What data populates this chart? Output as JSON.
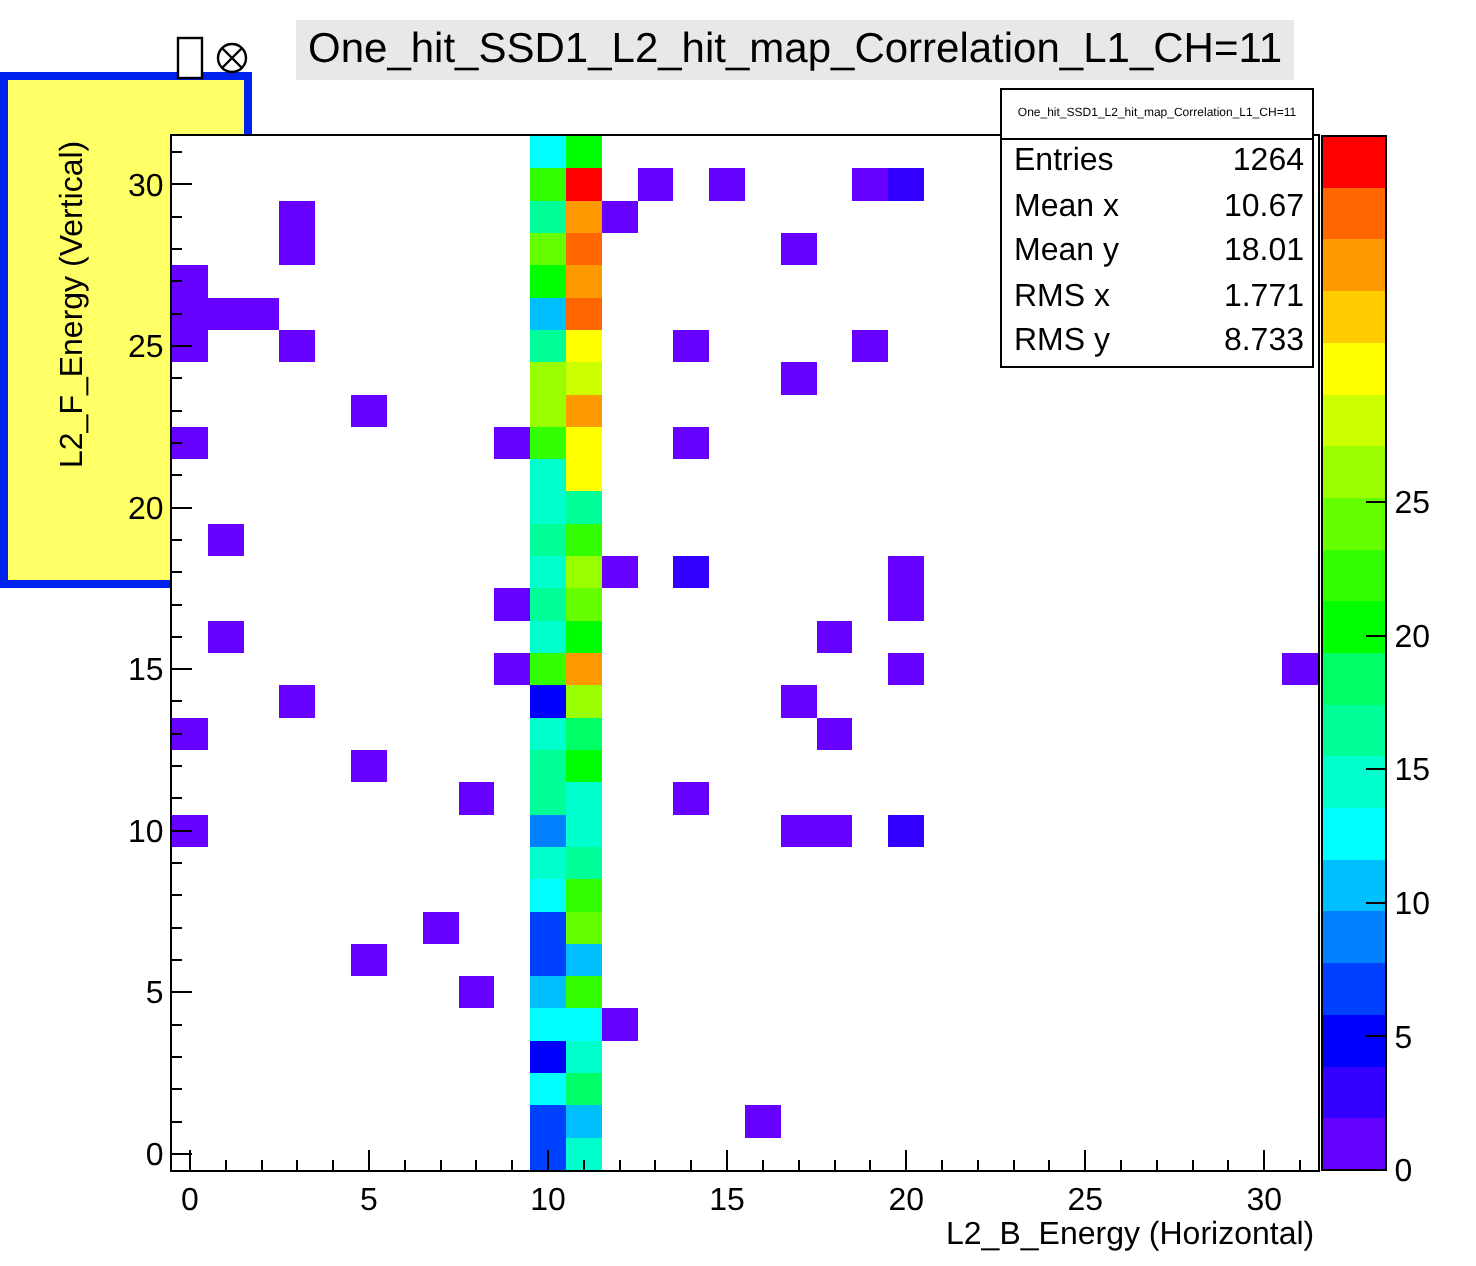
{
  "chart_data": {
    "type": "heatmap",
    "title": "One_hit_SSD1_L2_hit_map_Correlation_L1_CH=11",
    "xlabel": "L2_B_Energy (Horizontal)",
    "ylabel": "L2_F_Energy (Vertical)",
    "annotations": [
      "One_hit_SSD1_L2_hit_map_Correlation_L1_CH=11",
      "Entries",
      "1264",
      "Mean x",
      "10.67",
      "Mean y",
      "18.01",
      "RMS x",
      "1.771",
      "RMS y",
      "8.733"
    ],
    "x": [
      0,
      1,
      2,
      3,
      4,
      5,
      6,
      7,
      8,
      9,
      10,
      11,
      12,
      13,
      14,
      15,
      16,
      17,
      18,
      19,
      20,
      21,
      22,
      23,
      24,
      25,
      26,
      27,
      28,
      29,
      30,
      31
    ],
    "y_categories": [
      null,
      "30",
      null,
      null,
      null,
      null,
      "25",
      null,
      null,
      null,
      null,
      "20",
      null,
      null,
      null,
      null,
      "15",
      null,
      null,
      null,
      null,
      "10",
      null,
      null,
      null,
      null,
      "5",
      null,
      null,
      null,
      null,
      "0"
    ],
    "xlim": [
      -0.5,
      31.5
    ],
    "xticks": [
      0,
      5,
      10,
      15,
      20,
      25,
      30
    ],
    "clim": [
      0,
      38.7
    ],
    "cticks": [
      0,
      5,
      10,
      15,
      20,
      25
    ],
    "cells": [
      [
        null,
        null,
        null,
        null,
        null,
        null,
        null,
        null,
        null,
        null,
        13,
        20,
        null,
        null,
        null,
        null,
        null,
        null,
        null,
        null,
        null,
        null,
        null,
        null,
        null,
        null,
        null,
        null,
        null,
        null,
        null,
        null
      ],
      [
        null,
        null,
        null,
        null,
        null,
        null,
        null,
        null,
        null,
        null,
        22,
        38,
        null,
        1,
        null,
        1,
        null,
        null,
        null,
        1,
        3,
        null,
        null,
        null,
        null,
        null,
        null,
        null,
        null,
        null,
        null,
        null
      ],
      [
        null,
        null,
        null,
        1,
        null,
        null,
        null,
        null,
        null,
        null,
        17,
        34,
        1,
        null,
        null,
        null,
        null,
        null,
        null,
        null,
        null,
        null,
        null,
        null,
        null,
        null,
        null,
        null,
        null,
        null,
        null,
        null
      ],
      [
        null,
        null,
        null,
        1,
        null,
        null,
        null,
        null,
        null,
        null,
        24,
        36,
        null,
        null,
        null,
        null,
        null,
        1,
        null,
        null,
        null,
        null,
        null,
        null,
        null,
        null,
        null,
        null,
        null,
        null,
        null,
        null
      ],
      [
        1,
        null,
        null,
        null,
        null,
        null,
        null,
        null,
        null,
        null,
        20,
        34,
        null,
        null,
        null,
        null,
        null,
        null,
        null,
        null,
        null,
        null,
        null,
        null,
        null,
        null,
        null,
        null,
        null,
        null,
        null,
        null
      ],
      [
        1,
        1,
        1,
        null,
        null,
        null,
        null,
        null,
        null,
        null,
        11,
        36,
        null,
        null,
        null,
        null,
        null,
        null,
        null,
        null,
        null,
        null,
        null,
        null,
        null,
        null,
        null,
        null,
        null,
        null,
        null,
        null
      ],
      [
        1,
        null,
        null,
        1,
        null,
        null,
        null,
        null,
        null,
        null,
        17,
        30,
        null,
        null,
        1,
        null,
        null,
        null,
        null,
        1,
        null,
        null,
        null,
        null,
        null,
        null,
        null,
        null,
        null,
        null,
        null,
        null
      ],
      [
        null,
        null,
        null,
        null,
        null,
        null,
        null,
        null,
        null,
        null,
        26,
        28,
        null,
        null,
        null,
        null,
        null,
        1,
        null,
        null,
        null,
        null,
        null,
        null,
        null,
        null,
        null,
        null,
        null,
        null,
        null,
        null
      ],
      [
        null,
        null,
        null,
        null,
        null,
        1,
        null,
        null,
        null,
        null,
        26,
        34,
        null,
        null,
        null,
        null,
        null,
        null,
        null,
        null,
        null,
        null,
        null,
        null,
        null,
        null,
        null,
        null,
        null,
        null,
        null,
        null
      ],
      [
        1,
        null,
        null,
        null,
        null,
        null,
        null,
        null,
        null,
        1,
        22,
        30,
        null,
        null,
        1,
        null,
        null,
        null,
        null,
        null,
        null,
        null,
        null,
        null,
        null,
        null,
        null,
        null,
        null,
        null,
        null,
        null
      ],
      [
        null,
        null,
        null,
        null,
        null,
        null,
        null,
        null,
        null,
        null,
        15,
        30,
        null,
        null,
        null,
        null,
        null,
        null,
        null,
        null,
        null,
        null,
        null,
        null,
        null,
        null,
        null,
        null,
        null,
        null,
        null,
        null
      ],
      [
        null,
        null,
        null,
        null,
        null,
        null,
        null,
        null,
        null,
        null,
        15,
        17,
        null,
        null,
        null,
        null,
        null,
        null,
        null,
        null,
        null,
        null,
        null,
        null,
        null,
        null,
        null,
        null,
        null,
        null,
        null,
        null
      ],
      [
        null,
        1,
        null,
        null,
        null,
        null,
        null,
        null,
        null,
        null,
        17,
        22,
        null,
        null,
        null,
        null,
        null,
        null,
        null,
        null,
        null,
        null,
        null,
        null,
        null,
        null,
        null,
        null,
        null,
        null,
        null,
        null
      ],
      [
        null,
        null,
        null,
        null,
        null,
        null,
        null,
        null,
        null,
        null,
        15,
        26,
        1,
        null,
        3,
        null,
        null,
        null,
        null,
        null,
        1,
        null,
        null,
        null,
        null,
        null,
        null,
        null,
        null,
        null,
        null,
        null
      ],
      [
        null,
        null,
        null,
        null,
        null,
        null,
        null,
        null,
        null,
        1,
        17,
        24,
        null,
        null,
        null,
        null,
        null,
        null,
        null,
        null,
        1,
        null,
        null,
        null,
        null,
        null,
        null,
        null,
        null,
        null,
        null,
        null
      ],
      [
        null,
        1,
        null,
        null,
        null,
        null,
        null,
        null,
        null,
        null,
        15,
        20,
        null,
        null,
        null,
        null,
        null,
        null,
        1,
        null,
        null,
        null,
        null,
        null,
        null,
        null,
        null,
        null,
        null,
        null,
        null,
        null
      ],
      [
        null,
        null,
        null,
        null,
        null,
        null,
        null,
        null,
        null,
        1,
        22,
        34,
        null,
        null,
        null,
        null,
        null,
        null,
        null,
        null,
        1,
        null,
        null,
        null,
        null,
        null,
        null,
        null,
        null,
        null,
        null,
        1
      ],
      [
        null,
        null,
        null,
        1,
        null,
        null,
        null,
        null,
        null,
        null,
        5,
        26,
        null,
        null,
        null,
        null,
        null,
        1,
        null,
        null,
        null,
        null,
        null,
        null,
        null,
        null,
        null,
        null,
        null,
        null,
        null,
        null
      ],
      [
        1,
        null,
        null,
        null,
        null,
        null,
        null,
        null,
        null,
        null,
        15,
        18,
        null,
        null,
        null,
        null,
        null,
        null,
        1,
        null,
        null,
        null,
        null,
        null,
        null,
        null,
        null,
        null,
        null,
        null,
        null,
        null
      ],
      [
        null,
        null,
        null,
        null,
        null,
        1,
        null,
        null,
        null,
        null,
        17,
        20,
        null,
        null,
        null,
        null,
        null,
        null,
        null,
        null,
        null,
        null,
        null,
        null,
        null,
        null,
        null,
        null,
        null,
        null,
        null,
        null
      ],
      [
        null,
        null,
        null,
        null,
        null,
        null,
        null,
        null,
        1,
        null,
        17,
        15,
        null,
        null,
        1,
        null,
        null,
        null,
        null,
        null,
        null,
        null,
        null,
        null,
        null,
        null,
        null,
        null,
        null,
        null,
        null,
        null
      ],
      [
        1,
        null,
        null,
        null,
        null,
        null,
        null,
        null,
        null,
        null,
        9,
        15,
        null,
        null,
        null,
        null,
        null,
        1,
        1,
        null,
        3,
        null,
        null,
        null,
        null,
        null,
        null,
        null,
        null,
        null,
        null,
        null
      ],
      [
        null,
        null,
        null,
        null,
        null,
        null,
        null,
        null,
        null,
        null,
        15,
        17,
        null,
        null,
        null,
        null,
        null,
        null,
        null,
        null,
        null,
        null,
        null,
        null,
        null,
        null,
        null,
        null,
        null,
        null,
        null,
        null
      ],
      [
        null,
        null,
        null,
        null,
        null,
        null,
        null,
        null,
        null,
        null,
        13,
        22,
        null,
        null,
        null,
        null,
        null,
        null,
        null,
        null,
        null,
        null,
        null,
        null,
        null,
        null,
        null,
        null,
        null,
        null,
        null,
        null
      ],
      [
        null,
        null,
        null,
        null,
        null,
        null,
        null,
        1,
        null,
        null,
        7,
        24,
        null,
        null,
        null,
        null,
        null,
        null,
        null,
        null,
        null,
        null,
        null,
        null,
        null,
        null,
        null,
        null,
        null,
        null,
        null,
        null
      ],
      [
        null,
        null,
        null,
        null,
        null,
        1,
        null,
        null,
        null,
        null,
        7,
        11,
        null,
        null,
        null,
        null,
        null,
        null,
        null,
        null,
        null,
        null,
        null,
        null,
        null,
        null,
        null,
        null,
        null,
        null,
        null,
        null
      ],
      [
        null,
        null,
        null,
        null,
        null,
        null,
        null,
        null,
        1,
        null,
        11,
        22,
        null,
        null,
        null,
        null,
        null,
        null,
        null,
        null,
        null,
        null,
        null,
        null,
        null,
        null,
        null,
        null,
        null,
        null,
        null,
        null
      ],
      [
        null,
        null,
        null,
        null,
        null,
        null,
        null,
        null,
        null,
        null,
        13,
        13,
        1,
        null,
        null,
        null,
        null,
        null,
        null,
        null,
        null,
        null,
        null,
        null,
        null,
        null,
        null,
        null,
        null,
        null,
        null,
        null
      ],
      [
        null,
        null,
        null,
        null,
        null,
        null,
        null,
        null,
        null,
        null,
        5,
        15,
        null,
        null,
        null,
        null,
        null,
        null,
        null,
        null,
        null,
        null,
        null,
        null,
        null,
        null,
        null,
        null,
        null,
        null,
        null,
        null
      ],
      [
        null,
        null,
        null,
        null,
        null,
        null,
        null,
        null,
        null,
        null,
        13,
        18,
        null,
        null,
        null,
        null,
        null,
        null,
        null,
        null,
        null,
        null,
        null,
        null,
        null,
        null,
        null,
        null,
        null,
        null,
        null,
        null
      ],
      [
        null,
        null,
        null,
        null,
        null,
        null,
        null,
        null,
        null,
        null,
        7,
        11,
        null,
        null,
        null,
        null,
        1,
        null,
        null,
        null,
        null,
        null,
        null,
        null,
        null,
        null,
        null,
        null,
        null,
        null,
        null,
        null
      ],
      [
        null,
        null,
        null,
        null,
        null,
        null,
        null,
        null,
        null,
        null,
        7,
        15,
        null,
        null,
        null,
        null,
        null,
        null,
        null,
        null,
        null,
        null,
        null,
        null,
        null,
        null,
        null,
        null,
        null,
        null,
        null,
        null
      ]
    ]
  }
}
